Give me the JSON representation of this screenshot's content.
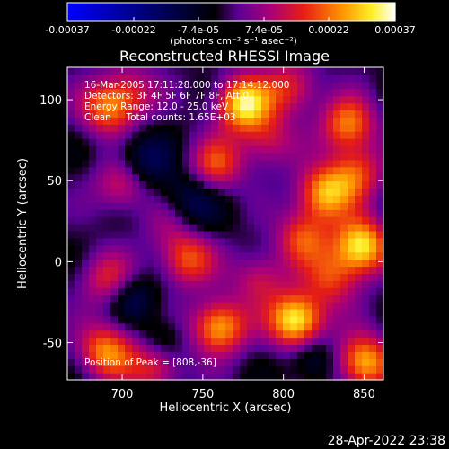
{
  "chart_data": {
    "type": "heatmap",
    "title": "Reconstructed RHESSI Image",
    "xlabel": "Heliocentric X (arcsec)",
    "ylabel": "Heliocentric Y (arcsec)",
    "xlim": [
      666,
      862
    ],
    "ylim": [
      -73,
      120
    ],
    "x_ticks": [
      700,
      750,
      800,
      850
    ],
    "y_ticks": [
      -50,
      0,
      50,
      100
    ],
    "colorbar": {
      "range": [
        -0.00037,
        0.00037
      ],
      "tick_labels": [
        "-0.00037",
        "-0.00022",
        "-7.4e-05",
        "7.4e-05",
        "0.00022",
        "0.00037"
      ],
      "tick_values": [
        -0.00037,
        -0.00022,
        -7.4e-05,
        7.4e-05,
        0.00022,
        0.00037
      ],
      "unit_label": "(photons cm⁻² s⁻¹ asec⁻²)"
    },
    "annotations": [
      "16-Mar-2005 17:11:28.000 to 17:14:12.000",
      "Detectors: 3F 4F 5F 6F 7F 8F, Att 0",
      "Energy Range: 12.0 - 25.0 keV",
      "Clean     Total counts: 1.65E+03"
    ],
    "peak_label": "Position of Peak = [808,-36]",
    "sources": [
      {
        "x": 690,
        "y": 95,
        "v": 0.00022
      },
      {
        "x": 775,
        "y": 98,
        "v": 0.00034
      },
      {
        "x": 840,
        "y": 85,
        "v": 0.00025
      },
      {
        "x": 700,
        "y": 48,
        "v": 0.00018
      },
      {
        "x": 758,
        "y": 60,
        "v": 0.0002
      },
      {
        "x": 825,
        "y": 42,
        "v": 0.00028
      },
      {
        "x": 848,
        "y": 10,
        "v": 0.00035
      },
      {
        "x": 812,
        "y": 15,
        "v": 0.0002
      },
      {
        "x": 740,
        "y": 2,
        "v": 0.00022
      },
      {
        "x": 690,
        "y": -10,
        "v": 0.00016
      },
      {
        "x": 760,
        "y": -40,
        "v": 0.0003
      },
      {
        "x": 690,
        "y": -55,
        "v": 0.00026
      },
      {
        "x": 808,
        "y": -36,
        "v": 0.00037
      },
      {
        "x": 850,
        "y": -62,
        "v": 0.0003
      },
      {
        "x": 720,
        "y": -65,
        "v": 0.00018
      },
      {
        "x": 790,
        "y": 75,
        "v": 0.00015
      },
      {
        "x": 845,
        "y": 55,
        "v": 0.0002
      },
      {
        "x": 730,
        "y": 25,
        "v": 0.00012
      },
      {
        "x": 785,
        "y": -10,
        "v": 0.00015
      },
      {
        "x": 830,
        "y": -10,
        "v": 0.00018
      },
      {
        "x": 705,
        "y": 105,
        "v": 0.00015
      },
      {
        "x": 805,
        "y": 108,
        "v": 0.00018
      }
    ],
    "grid": false,
    "legend": "none"
  },
  "footer": {
    "timestamp": "28-Apr-2022 23:38"
  }
}
